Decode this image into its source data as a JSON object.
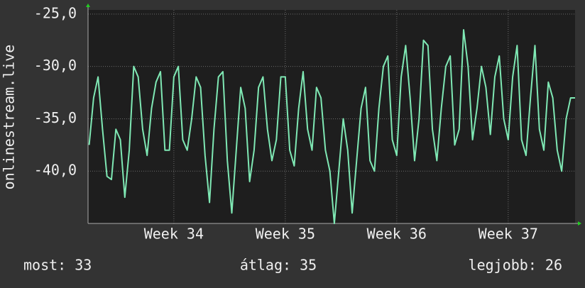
{
  "chart_data": {
    "type": "line",
    "ylabel": "onlinestream.live",
    "x": [
      33.24,
      33.28,
      33.32,
      33.36,
      33.4,
      33.44,
      33.48,
      33.52,
      33.56,
      33.6,
      33.64,
      33.68,
      33.72,
      33.76,
      33.8,
      33.84,
      33.88,
      33.92,
      33.96,
      34.0,
      34.04,
      34.08,
      34.12,
      34.16,
      34.2,
      34.24,
      34.28,
      34.32,
      34.36,
      34.4,
      34.44,
      34.48,
      34.52,
      34.56,
      34.6,
      34.64,
      34.68,
      34.72,
      34.76,
      34.8,
      34.84,
      34.88,
      34.92,
      34.96,
      35.0,
      35.04,
      35.08,
      35.12,
      35.16,
      35.2,
      35.24,
      35.28,
      35.32,
      35.36,
      35.4,
      35.44,
      35.48,
      35.52,
      35.56,
      35.6,
      35.64,
      35.68,
      35.72,
      35.76,
      35.8,
      35.84,
      35.88,
      35.92,
      35.96,
      36.0,
      36.04,
      36.08,
      36.12,
      36.16,
      36.2,
      36.24,
      36.28,
      36.32,
      36.36,
      36.4,
      36.44,
      36.48,
      36.52,
      36.56,
      36.6,
      36.64,
      36.68,
      36.72,
      36.76,
      36.8,
      36.84,
      36.88,
      36.92,
      36.96,
      37.0,
      37.04,
      37.08,
      37.12,
      37.16,
      37.2,
      37.24,
      37.28,
      37.32,
      37.36,
      37.4,
      37.44,
      37.48,
      37.52,
      37.56,
      37.6
    ],
    "series": [
      {
        "color": "#7fe8b4",
        "values": [
          -37.5,
          -33,
          -31,
          -36,
          -40.5,
          -40.8,
          -36,
          -37,
          -42.5,
          -38,
          -30,
          -31,
          -36,
          -38.5,
          -34,
          -31.5,
          -30.5,
          -38,
          -38,
          -31,
          -30,
          -37,
          -38,
          -35,
          -31,
          -32,
          -38.5,
          -43,
          -36,
          -31,
          -30.5,
          -39,
          -44,
          -38,
          -32,
          -34,
          -41,
          -38,
          -32,
          -31,
          -36,
          -39,
          -37,
          -31,
          -31,
          -38,
          -39.5,
          -34,
          -30.5,
          -36,
          -38,
          -32,
          -33,
          -38,
          -40,
          -45,
          -40,
          -35,
          -38,
          -44,
          -39,
          -34,
          -32,
          -39,
          -40,
          -34,
          -30,
          -29,
          -37,
          -38.5,
          -31,
          -28,
          -33,
          -39,
          -35,
          -27.5,
          -28,
          -36,
          -39,
          -34,
          -30,
          -29,
          -37.5,
          -36,
          -26.5,
          -30,
          -37,
          -34,
          -30,
          -32,
          -36.5,
          -31,
          -29,
          -35,
          -37,
          -31,
          -28,
          -37,
          -38.5,
          -33,
          -28,
          -36,
          -38,
          -31.5,
          -33,
          -38,
          -40,
          -35,
          -33,
          -33
        ]
      }
    ],
    "xlim": [
      33.23,
      37.6
    ],
    "xticks": [
      {
        "value": 34,
        "label": "Week 34"
      },
      {
        "value": 35,
        "label": "Week 35"
      },
      {
        "value": 36,
        "label": "Week 36"
      },
      {
        "value": 37,
        "label": "Week 37"
      }
    ],
    "ylim": [
      -45,
      -24.6
    ],
    "yticks": [
      {
        "value": -25,
        "label": "-25,0"
      },
      {
        "value": -30,
        "label": "-30,0"
      },
      {
        "value": -35,
        "label": "-35,0"
      },
      {
        "value": -40,
        "label": "-40,0"
      }
    ],
    "grid": true,
    "footer": [
      "most: 33",
      "átlag: 35",
      "legjobb: 26"
    ]
  }
}
